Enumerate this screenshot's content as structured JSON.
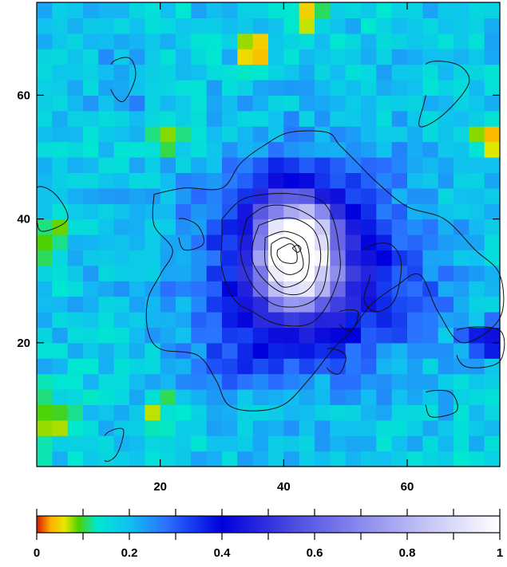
{
  "chart_data": {
    "type": "heatmap",
    "title": "",
    "xlabel": "",
    "ylabel": "",
    "xlim": [
      0,
      75
    ],
    "ylim": [
      0,
      75
    ],
    "x_ticks": [
      {
        "value": 20,
        "label": "20"
      },
      {
        "value": 40,
        "label": "40"
      },
      {
        "value": 60,
        "label": "60"
      }
    ],
    "y_ticks": [
      {
        "value": 20,
        "label": "20"
      },
      {
        "value": 40,
        "label": "40"
      },
      {
        "value": 60,
        "label": "60"
      }
    ],
    "colorbar": {
      "range": [
        0,
        1
      ],
      "ticks": [
        {
          "value": 0,
          "label": "0"
        },
        {
          "value": 0.2,
          "label": "0.2"
        },
        {
          "value": 0.4,
          "label": "0.4"
        },
        {
          "value": 0.6,
          "label": "0.6"
        },
        {
          "value": 0.8,
          "label": "0.8"
        },
        {
          "value": 1,
          "label": "1"
        }
      ],
      "colormap": [
        {
          "v": 0.0,
          "color": "#d21a00"
        },
        {
          "v": 0.03,
          "color": "#ffb000"
        },
        {
          "v": 0.06,
          "color": "#e8e800"
        },
        {
          "v": 0.09,
          "color": "#50d000"
        },
        {
          "v": 0.13,
          "color": "#00e8d0"
        },
        {
          "v": 0.2,
          "color": "#10c0f0"
        },
        {
          "v": 0.28,
          "color": "#2a70ff"
        },
        {
          "v": 0.4,
          "color": "#0000dd"
        },
        {
          "v": 0.55,
          "color": "#4a4ae0"
        },
        {
          "v": 0.7,
          "color": "#8a8aee"
        },
        {
          "v": 0.85,
          "color": "#c8c8f6"
        },
        {
          "v": 1.0,
          "color": "#ffffff"
        }
      ]
    },
    "grid": {
      "cell_size": 2.5,
      "columns": 30,
      "rows": 30,
      "background_level": 0.18,
      "features": [
        {
          "kind": "peak",
          "x": 42,
          "y": 35,
          "amplitude": 0.8,
          "sx": 4.5,
          "sy": 6
        },
        {
          "kind": "broad",
          "x": 43,
          "y": 33,
          "amplitude": 0.22,
          "sx": 13,
          "sy": 12
        },
        {
          "kind": "broad",
          "x": 50,
          "y": 28,
          "amplitude": 0.1,
          "sx": 10,
          "sy": 6
        },
        {
          "kind": "broad",
          "x": 74,
          "y": 20,
          "amplitude": 0.25,
          "sx": 3,
          "sy": 2
        },
        {
          "kind": "broad",
          "x": 14,
          "y": 62,
          "amplitude": 0.08,
          "sx": 3,
          "sy": 4
        },
        {
          "kind": "broad",
          "x": 33,
          "y": 18,
          "amplitude": 0.08,
          "sx": 5,
          "sy": 4
        },
        {
          "kind": "low",
          "x": 35,
          "y": 65,
          "amplitude": -0.2,
          "sx": 1.4,
          "sy": 1.4
        },
        {
          "kind": "low",
          "x": 35,
          "y": 68,
          "amplitude": -0.14,
          "sx": 1.5,
          "sy": 1.5
        },
        {
          "kind": "low",
          "x": 22,
          "y": 53,
          "amplitude": -0.14,
          "sx": 3,
          "sy": 1.5
        },
        {
          "kind": "low",
          "x": 73,
          "y": 53,
          "amplitude": -0.14,
          "sx": 3,
          "sy": 2
        },
        {
          "kind": "low",
          "x": 44,
          "y": 72,
          "amplitude": -0.14,
          "sx": 1.5,
          "sy": 3
        },
        {
          "kind": "low",
          "x": 20,
          "y": 8,
          "amplitude": -0.1,
          "sx": 2,
          "sy": 2.5
        },
        {
          "kind": "low",
          "x": 2,
          "y": 37,
          "amplitude": -0.1,
          "sx": 2,
          "sy": 3
        },
        {
          "kind": "low",
          "x": 3,
          "y": 8,
          "amplitude": -0.08,
          "sx": 3,
          "sy": 3
        },
        {
          "kind": "low",
          "x": 73,
          "y": 13,
          "amplitude": -0.07,
          "sx": 2,
          "sy": 2
        }
      ]
    },
    "contours": [
      {
        "level": "c1",
        "points": [
          [
            19,
            44
          ],
          [
            24,
            45
          ],
          [
            30,
            45
          ],
          [
            33,
            49
          ],
          [
            37,
            52
          ],
          [
            41,
            54
          ],
          [
            47,
            54
          ],
          [
            49,
            52
          ],
          [
            52,
            49
          ],
          [
            55,
            46
          ],
          [
            60,
            42
          ],
          [
            66,
            40
          ],
          [
            71,
            35
          ],
          [
            75,
            31
          ],
          [
            75,
            24
          ],
          [
            69,
            20
          ],
          [
            65,
            25
          ],
          [
            62,
            31
          ],
          [
            58,
            29
          ],
          [
            54,
            26
          ],
          [
            51,
            22
          ],
          [
            48,
            19
          ],
          [
            44,
            14
          ],
          [
            40,
            10
          ],
          [
            35,
            9
          ],
          [
            31,
            10
          ],
          [
            29,
            14
          ],
          [
            26,
            18
          ],
          [
            20,
            19
          ],
          [
            18,
            22
          ],
          [
            18,
            27
          ],
          [
            20,
            31
          ],
          [
            22,
            35
          ],
          [
            19,
            39
          ],
          [
            19,
            44
          ]
        ]
      },
      {
        "level": "c1b",
        "points": [
          [
            0,
            45
          ],
          [
            3,
            44
          ],
          [
            5,
            40
          ],
          [
            1,
            38
          ],
          [
            0,
            40
          ]
        ]
      },
      {
        "level": "c1c",
        "points": [
          [
            12,
            65
          ],
          [
            15,
            66
          ],
          [
            16,
            63
          ],
          [
            14,
            59
          ],
          [
            12,
            61
          ]
        ]
      },
      {
        "level": "c1d",
        "points": [
          [
            63,
            65
          ],
          [
            68,
            65
          ],
          [
            70,
            62
          ],
          [
            66,
            57
          ],
          [
            62,
            55
          ],
          [
            63,
            60
          ]
        ]
      },
      {
        "level": "c1e",
        "points": [
          [
            11,
            5
          ],
          [
            14,
            6
          ],
          [
            13,
            2
          ],
          [
            11,
            1
          ]
        ]
      },
      {
        "level": "c1f",
        "points": [
          [
            63,
            12
          ],
          [
            67,
            12
          ],
          [
            68,
            9
          ],
          [
            64,
            8
          ],
          [
            63,
            10
          ]
        ]
      },
      {
        "level": "c1g",
        "points": [
          [
            68,
            22
          ],
          [
            75,
            22
          ],
          [
            75,
            17
          ],
          [
            70,
            16
          ],
          [
            68,
            18
          ]
        ]
      },
      {
        "level": "c1h",
        "points": [
          [
            47,
            19
          ],
          [
            50,
            18
          ],
          [
            49,
            15
          ],
          [
            47,
            16
          ]
        ]
      },
      {
        "level": "c1i",
        "points": [
          [
            23,
            40
          ],
          [
            26,
            39
          ],
          [
            27,
            36
          ],
          [
            24,
            35
          ],
          [
            23,
            37
          ]
        ]
      },
      {
        "level": "c2",
        "points": [
          [
            30,
            40
          ],
          [
            33,
            43
          ],
          [
            37,
            44
          ],
          [
            42,
            44
          ],
          [
            46,
            43
          ],
          [
            48,
            40
          ],
          [
            49,
            35
          ],
          [
            49,
            31
          ],
          [
            47,
            26
          ],
          [
            44,
            23
          ],
          [
            39,
            23
          ],
          [
            35,
            25
          ],
          [
            32,
            27
          ],
          [
            30,
            32
          ],
          [
            30,
            37
          ],
          [
            30,
            40
          ]
        ]
      },
      {
        "level": "c2b",
        "points": [
          [
            53,
            35
          ],
          [
            57,
            36
          ],
          [
            59,
            33
          ],
          [
            58,
            27
          ],
          [
            55,
            25
          ],
          [
            53,
            27
          ],
          [
            54,
            31
          ]
        ]
      },
      {
        "level": "c2c",
        "points": [
          [
            49,
            25
          ],
          [
            52,
            25
          ],
          [
            51,
            22
          ],
          [
            49,
            23
          ]
        ]
      },
      {
        "level": "c3",
        "points": [
          [
            34,
            40
          ],
          [
            37,
            42
          ],
          [
            41,
            42
          ],
          [
            45,
            40
          ],
          [
            47,
            37
          ],
          [
            47,
            32
          ],
          [
            46,
            28
          ],
          [
            43,
            26
          ],
          [
            39,
            26
          ],
          [
            36,
            28
          ],
          [
            34,
            31
          ],
          [
            33,
            35
          ],
          [
            34,
            40
          ]
        ]
      },
      {
        "level": "c4",
        "points": [
          [
            36,
            39
          ],
          [
            39,
            40
          ],
          [
            42,
            40
          ],
          [
            45,
            38
          ],
          [
            46,
            34
          ],
          [
            45,
            30
          ],
          [
            43,
            28
          ],
          [
            40,
            28
          ],
          [
            37,
            30
          ],
          [
            35,
            33
          ],
          [
            35,
            36
          ],
          [
            36,
            39
          ]
        ]
      },
      {
        "level": "c5",
        "points": [
          [
            37,
            37
          ],
          [
            40,
            38
          ],
          [
            43,
            37
          ],
          [
            44,
            35
          ],
          [
            44,
            32
          ],
          [
            43,
            30
          ],
          [
            40,
            29
          ],
          [
            38,
            31
          ],
          [
            37,
            33
          ],
          [
            37,
            37
          ]
        ]
      },
      {
        "level": "c6",
        "points": [
          [
            38,
            36
          ],
          [
            40,
            37
          ],
          [
            42,
            36
          ],
          [
            43,
            34
          ],
          [
            43,
            32
          ],
          [
            41,
            31
          ],
          [
            39,
            32
          ],
          [
            38,
            34
          ],
          [
            38,
            36
          ]
        ]
      },
      {
        "level": "c7",
        "points": [
          [
            39,
            35
          ],
          [
            41,
            36
          ],
          [
            42,
            35
          ],
          [
            42,
            33
          ],
          [
            40,
            33
          ],
          [
            39,
            34
          ],
          [
            39,
            35
          ]
        ]
      },
      {
        "level": "c8",
        "points": [
          [
            41.4,
            35.3
          ],
          [
            42.2,
            35.8
          ],
          [
            42.8,
            35.2
          ],
          [
            42.2,
            34.6
          ],
          [
            41.4,
            35.3
          ]
        ]
      }
    ]
  }
}
